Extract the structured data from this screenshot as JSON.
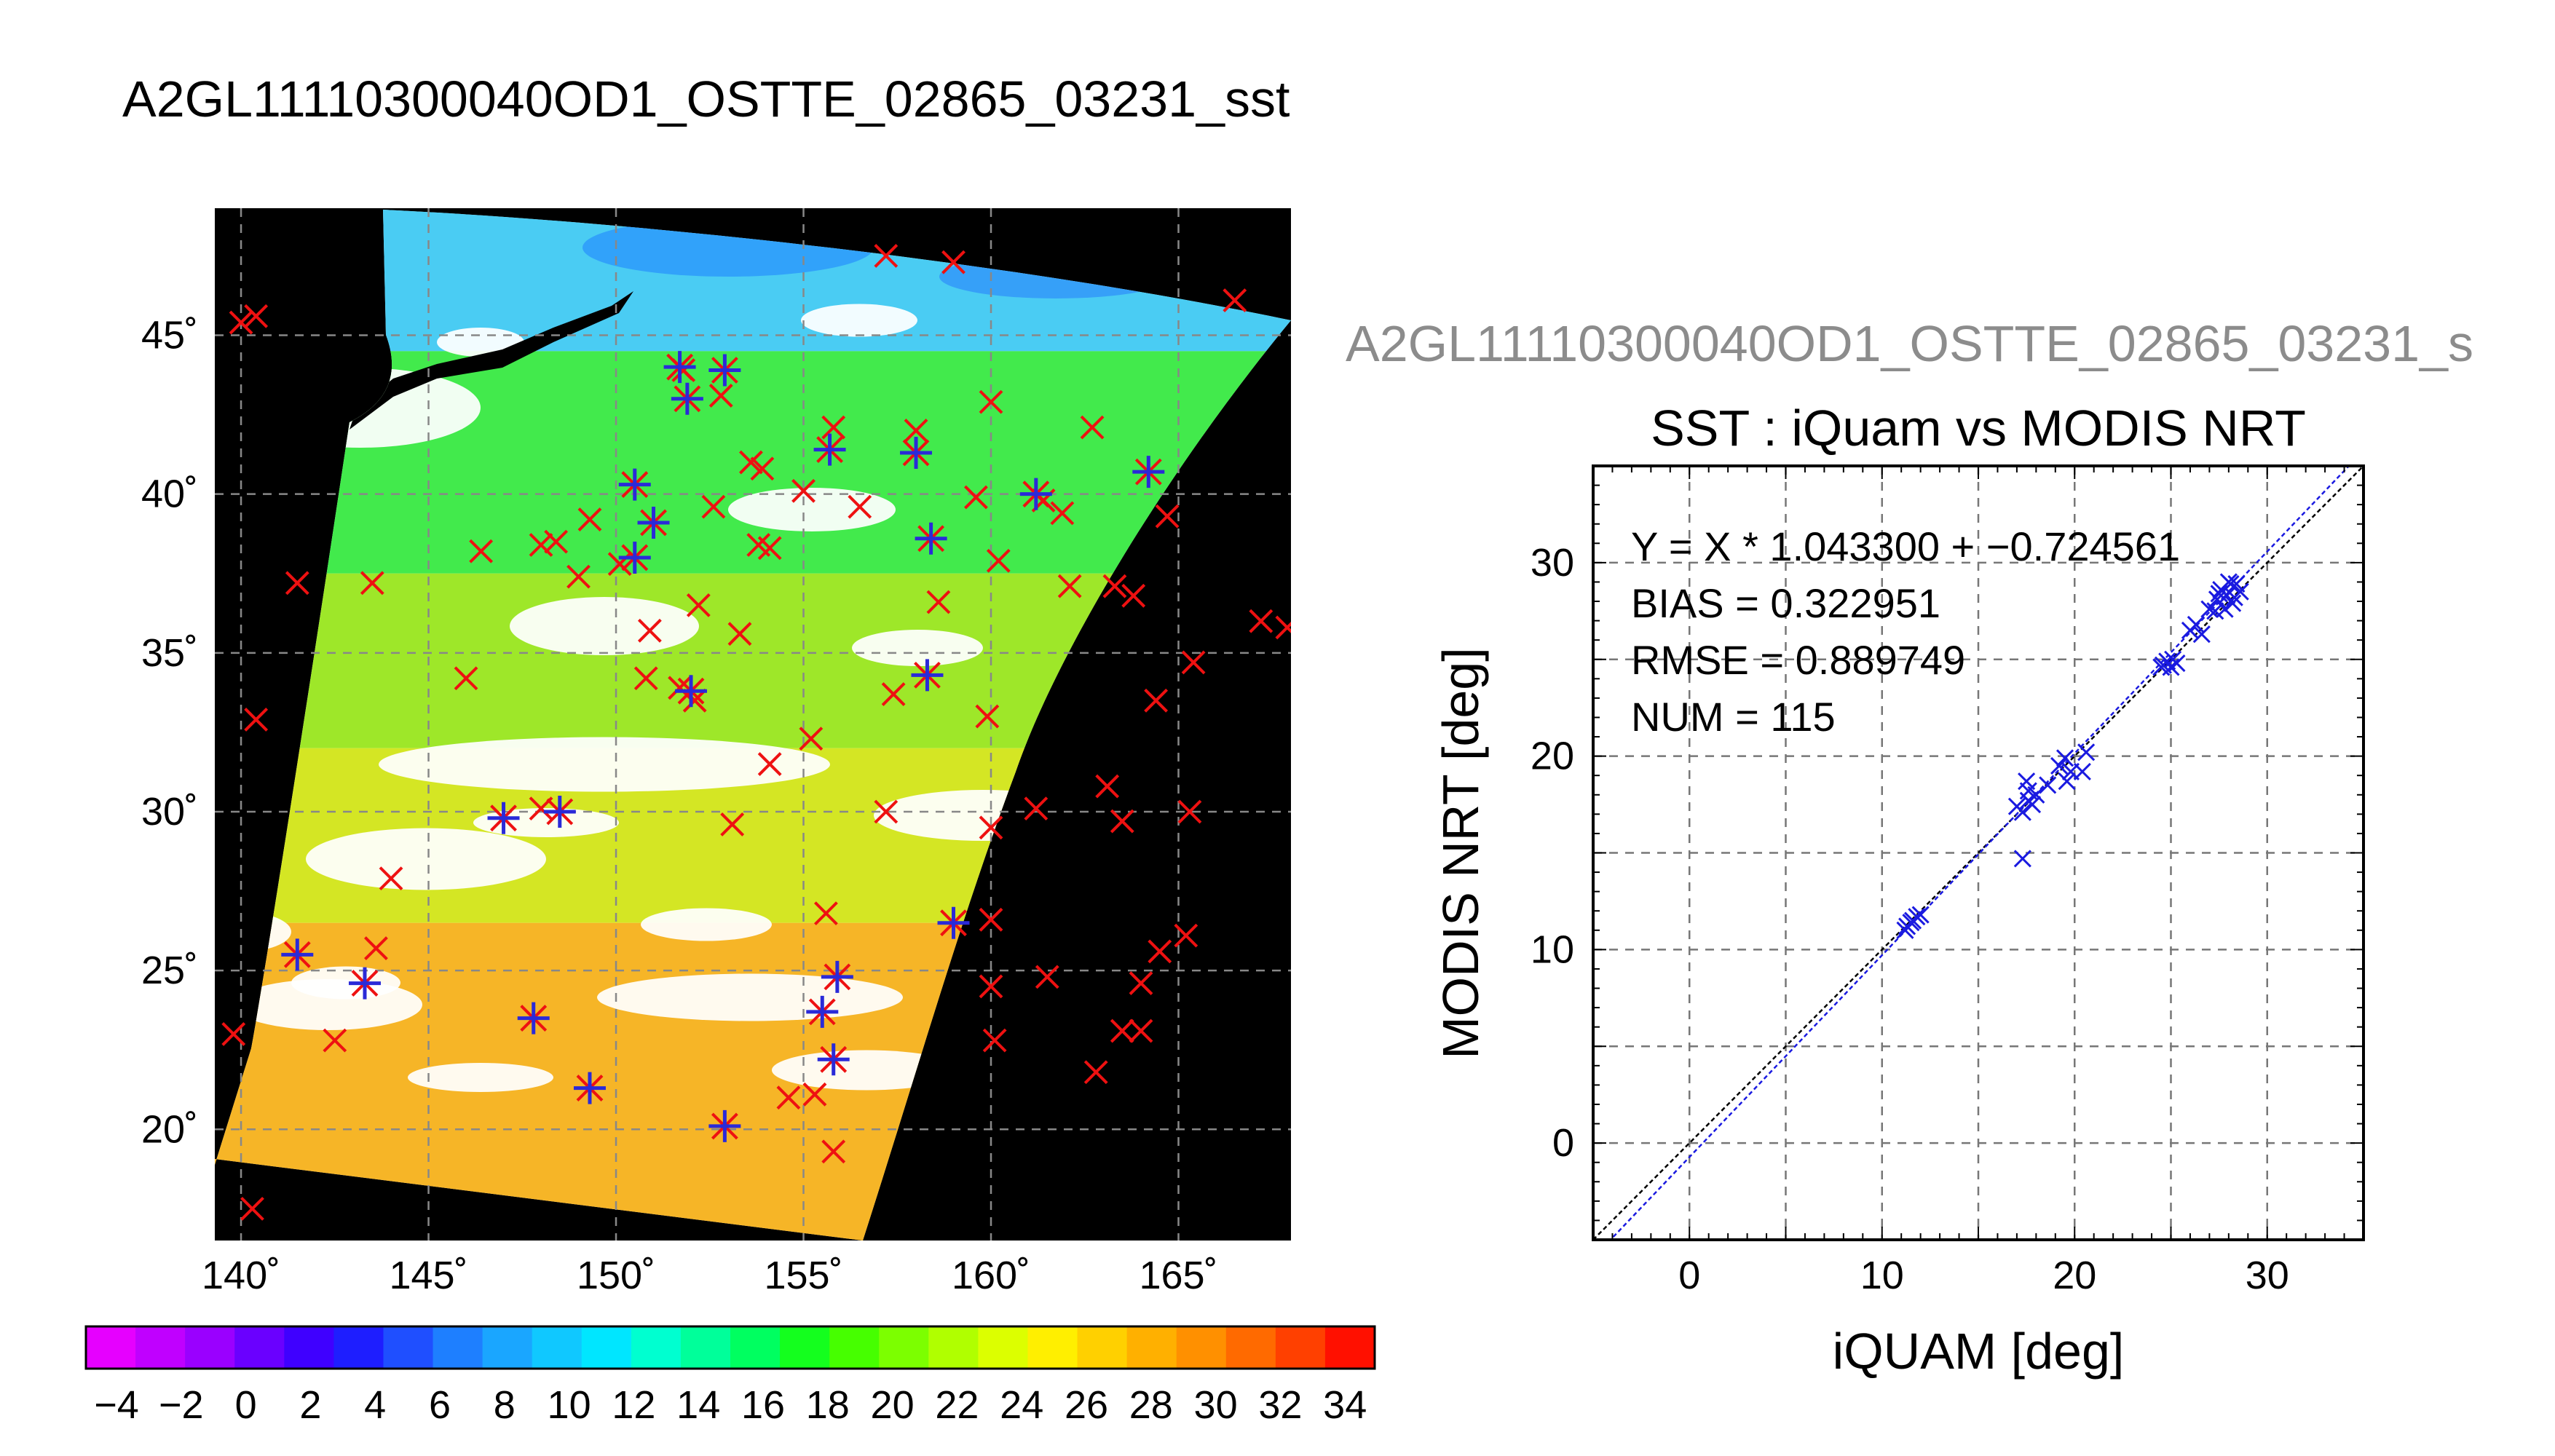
{
  "main_title": "A2GL11110300040OD1_OSTTE_02865_03231_sst",
  "scatter_heading": "A2GL11110300040OD1_OSTTE_02865_03231_s",
  "colorbar": {
    "tick_labels": [
      "−4",
      "−2",
      "0",
      "2",
      "4",
      "6",
      "8",
      "10",
      "12",
      "14",
      "16",
      "18",
      "20",
      "22",
      "24",
      "26",
      "28",
      "30",
      "32",
      "34"
    ],
    "colors": [
      "#e600ff",
      "#c000ff",
      "#9a00ff",
      "#6a00ff",
      "#3f00ff",
      "#1e1eff",
      "#1f4fff",
      "#1e7fff",
      "#1aa6ff",
      "#10c8ff",
      "#00e6ff",
      "#00ffd0",
      "#00ff9a",
      "#00ff60",
      "#14ff1e",
      "#46ff00",
      "#7cff00",
      "#b0ff00",
      "#dcff00",
      "#ffef00",
      "#ffd000",
      "#ffb000",
      "#ff9000",
      "#ff6a00",
      "#ff4000",
      "#ff1000"
    ]
  },
  "chart_data": [
    {
      "type": "heatmap",
      "description_kind": "map",
      "lon_ticks": [
        "140˚",
        "145˚",
        "150˚",
        "155˚",
        "160˚",
        "165˚"
      ],
      "lat_ticks": [
        "45˚",
        "40˚",
        "35˚",
        "30˚",
        "25˚",
        "20˚"
      ],
      "lon_range": [
        139.3,
        168.0
      ],
      "lat_range": [
        16.5,
        49.0
      ],
      "swath_bands": [
        {
          "lat_top": 49.0,
          "lat_bottom": 44.5,
          "sst": 9,
          "color": "#36c6f2"
        },
        {
          "lat_top": 44.5,
          "lat_bottom": 37.5,
          "sst": 19,
          "color": "#2ee839"
        },
        {
          "lat_top": 37.5,
          "lat_bottom": 32.0,
          "sst": 23,
          "color": "#93e412"
        },
        {
          "lat_top": 32.0,
          "lat_bottom": 26.5,
          "sst": 26,
          "color": "#cfe30c"
        },
        {
          "lat_top": 26.5,
          "lat_bottom": 16.5,
          "sst": 28,
          "color": "#f5ad0f"
        }
      ],
      "red_x_points": [
        {
          "lon": 140.0,
          "lat": 45.4
        },
        {
          "lon": 140.4,
          "lat": 45.6
        },
        {
          "lon": 157.2,
          "lat": 47.5
        },
        {
          "lon": 159.0,
          "lat": 47.3
        },
        {
          "lon": 166.5,
          "lat": 46.1
        },
        {
          "lon": 151.8,
          "lat": 43.9
        },
        {
          "lon": 152.8,
          "lat": 43.1
        },
        {
          "lon": 155.8,
          "lat": 42.1
        },
        {
          "lon": 158.0,
          "lat": 42.0
        },
        {
          "lon": 160.0,
          "lat": 42.9
        },
        {
          "lon": 162.7,
          "lat": 42.1
        },
        {
          "lon": 153.6,
          "lat": 41.0
        },
        {
          "lon": 153.9,
          "lat": 40.8
        },
        {
          "lon": 155.0,
          "lat": 40.1
        },
        {
          "lon": 156.5,
          "lat": 39.6
        },
        {
          "lon": 159.6,
          "lat": 39.9
        },
        {
          "lon": 161.4,
          "lat": 39.8
        },
        {
          "lon": 161.9,
          "lat": 39.4
        },
        {
          "lon": 164.7,
          "lat": 39.3
        },
        {
          "lon": 152.6,
          "lat": 39.6
        },
        {
          "lon": 149.3,
          "lat": 39.2
        },
        {
          "lon": 148.4,
          "lat": 38.5
        },
        {
          "lon": 148.0,
          "lat": 38.4
        },
        {
          "lon": 146.4,
          "lat": 38.2
        },
        {
          "lon": 149.0,
          "lat": 37.4
        },
        {
          "lon": 150.1,
          "lat": 37.8
        },
        {
          "lon": 153.8,
          "lat": 38.4
        },
        {
          "lon": 154.1,
          "lat": 38.3
        },
        {
          "lon": 160.2,
          "lat": 37.9
        },
        {
          "lon": 162.1,
          "lat": 37.1
        },
        {
          "lon": 163.3,
          "lat": 37.1
        },
        {
          "lon": 163.8,
          "lat": 36.8
        },
        {
          "lon": 141.5,
          "lat": 37.2
        },
        {
          "lon": 143.5,
          "lat": 37.2
        },
        {
          "lon": 152.2,
          "lat": 36.5
        },
        {
          "lon": 158.6,
          "lat": 36.6
        },
        {
          "lon": 150.9,
          "lat": 35.7
        },
        {
          "lon": 153.3,
          "lat": 35.6
        },
        {
          "lon": 167.2,
          "lat": 36.0
        },
        {
          "lon": 167.9,
          "lat": 35.8
        },
        {
          "lon": 165.4,
          "lat": 34.7
        },
        {
          "lon": 146.0,
          "lat": 34.2
        },
        {
          "lon": 150.8,
          "lat": 34.2
        },
        {
          "lon": 151.7,
          "lat": 33.9
        },
        {
          "lon": 152.1,
          "lat": 33.5
        },
        {
          "lon": 157.4,
          "lat": 33.7
        },
        {
          "lon": 164.4,
          "lat": 33.5
        },
        {
          "lon": 140.4,
          "lat": 32.9
        },
        {
          "lon": 159.9,
          "lat": 33.0
        },
        {
          "lon": 155.2,
          "lat": 32.3
        },
        {
          "lon": 154.1,
          "lat": 31.5
        },
        {
          "lon": 163.1,
          "lat": 30.8
        },
        {
          "lon": 148.0,
          "lat": 30.1
        },
        {
          "lon": 157.2,
          "lat": 30.0
        },
        {
          "lon": 161.2,
          "lat": 30.1
        },
        {
          "lon": 165.3,
          "lat": 30.0
        },
        {
          "lon": 153.1,
          "lat": 29.6
        },
        {
          "lon": 160.0,
          "lat": 29.5
        },
        {
          "lon": 163.5,
          "lat": 29.7
        },
        {
          "lon": 144.0,
          "lat": 27.9
        },
        {
          "lon": 155.6,
          "lat": 26.8
        },
        {
          "lon": 160.0,
          "lat": 26.6
        },
        {
          "lon": 143.6,
          "lat": 25.7
        },
        {
          "lon": 165.2,
          "lat": 26.1
        },
        {
          "lon": 164.5,
          "lat": 25.6
        },
        {
          "lon": 160.0,
          "lat": 24.5
        },
        {
          "lon": 161.5,
          "lat": 24.8
        },
        {
          "lon": 164.0,
          "lat": 24.6
        },
        {
          "lon": 163.5,
          "lat": 23.1
        },
        {
          "lon": 164.0,
          "lat": 23.1
        },
        {
          "lon": 139.8,
          "lat": 23.0
        },
        {
          "lon": 142.5,
          "lat": 22.8
        },
        {
          "lon": 160.1,
          "lat": 22.8
        },
        {
          "lon": 162.8,
          "lat": 21.8
        },
        {
          "lon": 154.6,
          "lat": 21.0
        },
        {
          "lon": 155.3,
          "lat": 21.1
        },
        {
          "lon": 155.8,
          "lat": 19.3
        },
        {
          "lon": 140.3,
          "lat": 17.5
        }
      ],
      "star_points": [
        {
          "lon": 151.7,
          "lat": 44.0
        },
        {
          "lon": 152.9,
          "lat": 43.9
        },
        {
          "lon": 151.9,
          "lat": 43.0
        },
        {
          "lon": 155.7,
          "lat": 41.4
        },
        {
          "lon": 158.0,
          "lat": 41.3
        },
        {
          "lon": 150.5,
          "lat": 40.3
        },
        {
          "lon": 161.2,
          "lat": 40.0
        },
        {
          "lon": 164.2,
          "lat": 40.7
        },
        {
          "lon": 151.0,
          "lat": 39.1
        },
        {
          "lon": 158.4,
          "lat": 38.6
        },
        {
          "lon": 150.5,
          "lat": 38.0
        },
        {
          "lon": 158.3,
          "lat": 34.3
        },
        {
          "lon": 152.0,
          "lat": 33.8
        },
        {
          "lon": 147.0,
          "lat": 29.8
        },
        {
          "lon": 148.5,
          "lat": 30.0
        },
        {
          "lon": 159.0,
          "lat": 26.5
        },
        {
          "lon": 141.5,
          "lat": 25.5
        },
        {
          "lon": 143.3,
          "lat": 24.6
        },
        {
          "lon": 155.9,
          "lat": 24.8
        },
        {
          "lon": 147.8,
          "lat": 23.5
        },
        {
          "lon": 155.5,
          "lat": 23.7
        },
        {
          "lon": 155.8,
          "lat": 22.2
        },
        {
          "lon": 149.3,
          "lat": 21.3
        },
        {
          "lon": 152.9,
          "lat": 20.1
        }
      ]
    },
    {
      "type": "scatter",
      "title": "SST : iQuam vs MODIS NRT",
      "xlabel": "iQUAM [deg]",
      "ylabel": "MODIS NRT [deg]",
      "xlim": [
        -5,
        35
      ],
      "ylim": [
        -5,
        35
      ],
      "xticks": [
        "0",
        "10",
        "20",
        "30"
      ],
      "yticks": [
        "0",
        "10",
        "20",
        "30"
      ],
      "grid": true,
      "stats": [
        "Y = X * 1.043300 + −0.724561",
        "BIAS = 0.322951",
        "RMSE = 0.889749",
        "NUM = 115"
      ],
      "fit": {
        "slope": 1.0433,
        "intercept": -0.724561
      },
      "points_x": [
        11.2,
        11.5,
        11.8,
        12.0,
        11.3,
        11.6,
        17.0,
        17.3,
        17.5,
        17.8,
        17.6,
        17.3,
        18.0,
        18.6,
        19.2,
        19.5,
        19.8,
        20.4,
        20.6,
        19.6,
        17.6,
        24.5,
        24.8,
        25.0,
        25.3,
        24.6,
        25.1,
        26.0,
        26.3,
        26.6,
        27.0,
        27.4,
        27.6,
        27.9,
        28.1,
        28.3,
        28.6,
        28.4,
        27.8,
        28.0,
        27.5,
        28.2,
        27.3
      ],
      "points_y": [
        11.0,
        11.4,
        11.7,
        11.8,
        11.2,
        11.5,
        17.4,
        17.1,
        18.7,
        17.5,
        18.2,
        14.7,
        18.0,
        18.5,
        19.5,
        19.9,
        19.2,
        19.2,
        20.2,
        18.7,
        17.7,
        24.6,
        24.9,
        24.6,
        24.8,
        24.7,
        25.0,
        26.5,
        26.8,
        26.3,
        27.6,
        28.1,
        28.6,
        28.3,
        28.9,
        28.2,
        28.5,
        28.9,
        27.6,
        29.0,
        28.4,
        27.9,
        27.5
      ]
    }
  ]
}
